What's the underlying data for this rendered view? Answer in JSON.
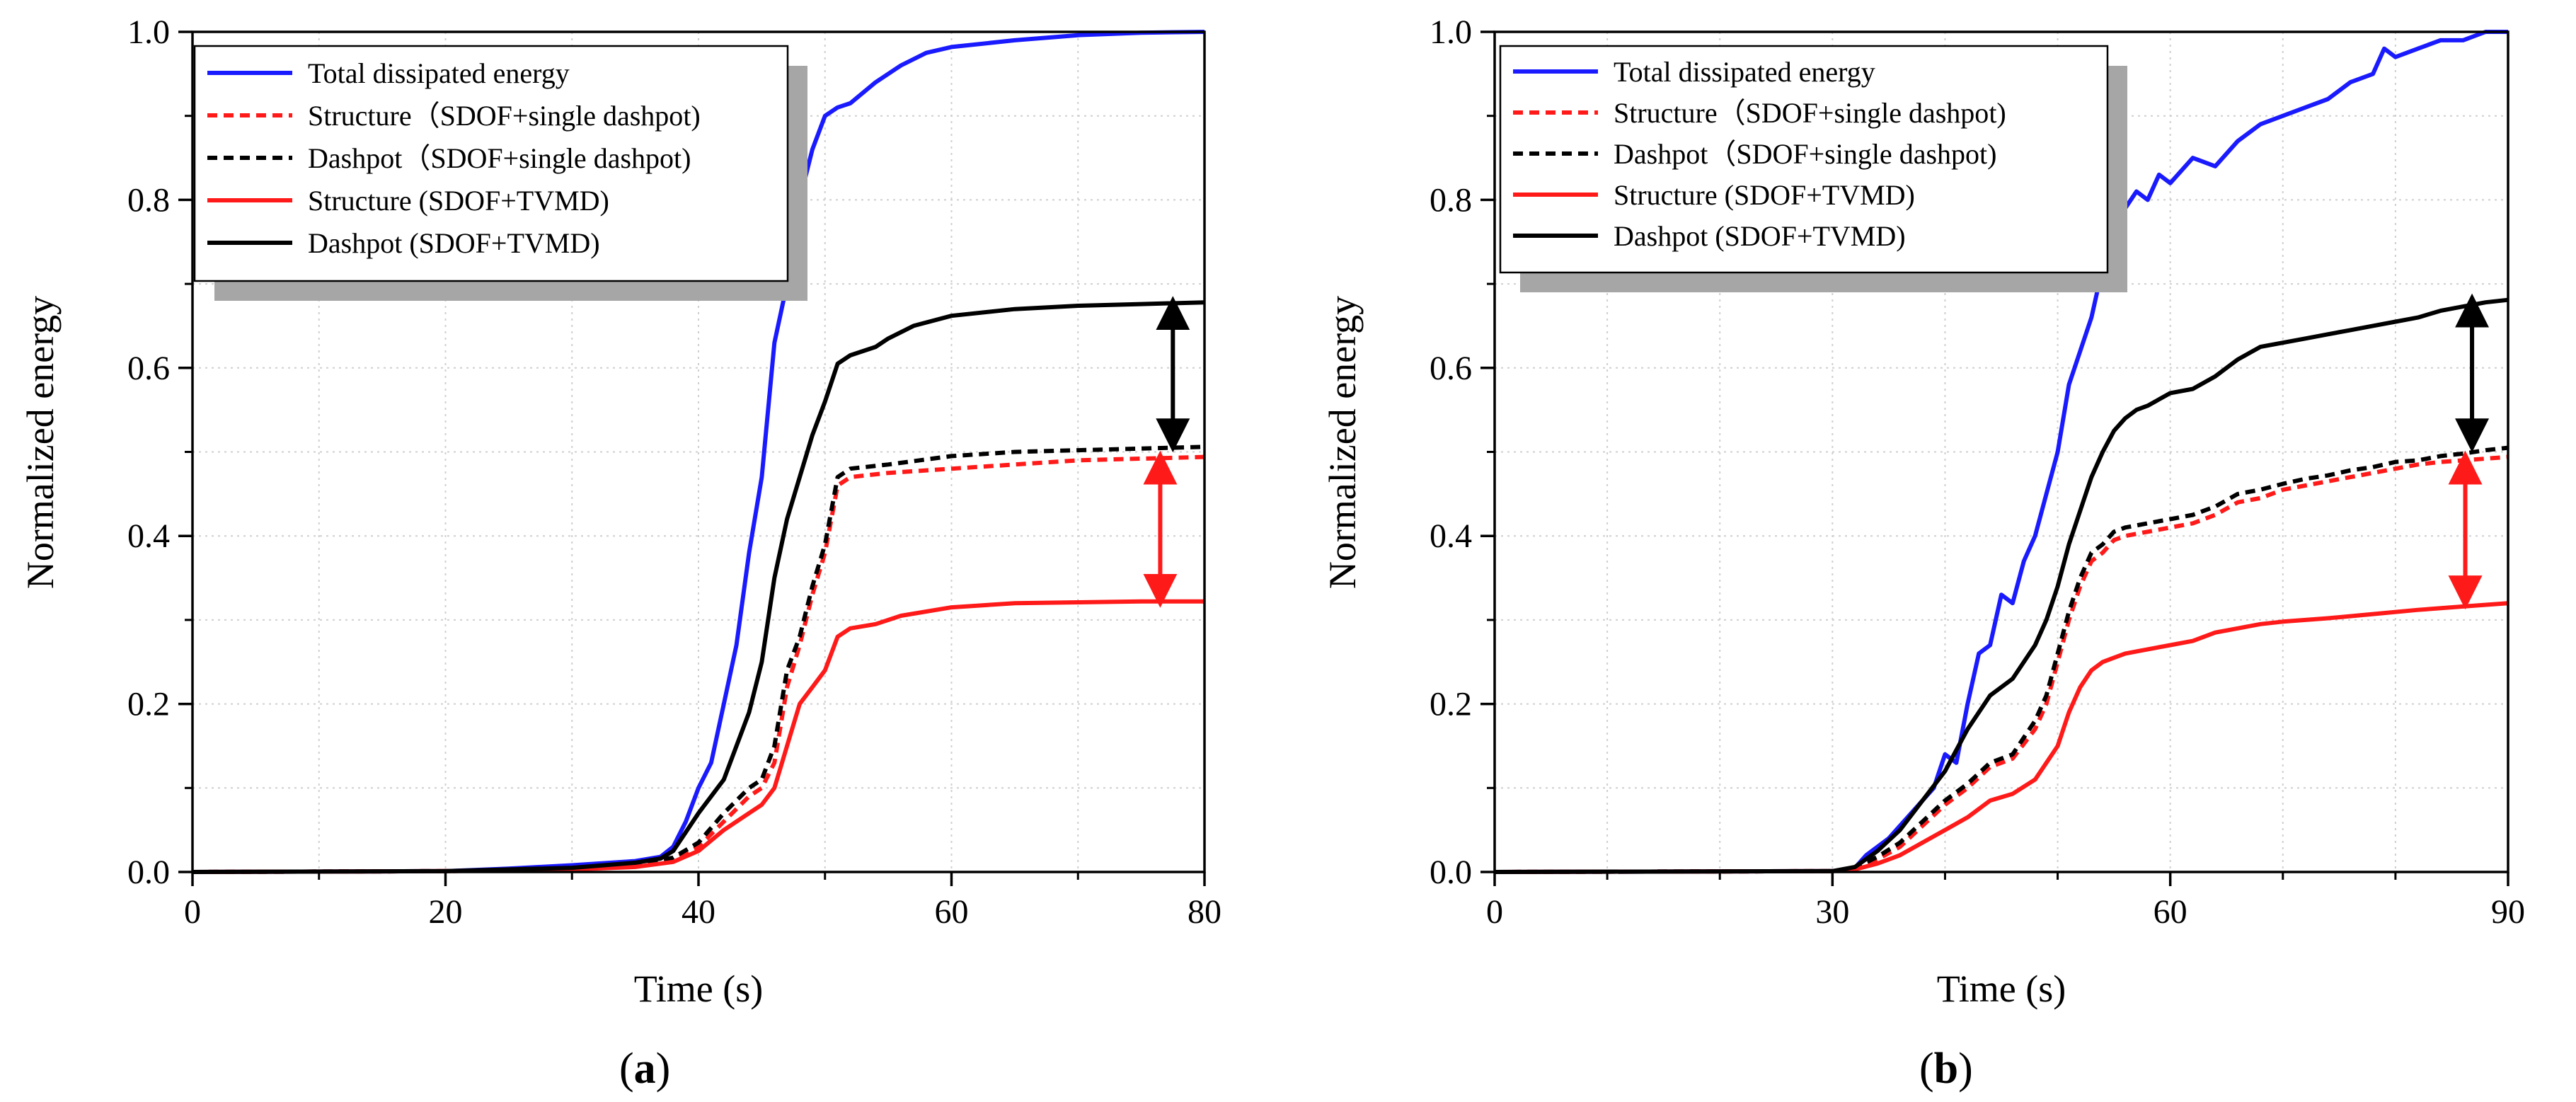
{
  "figure": {
    "title": ""
  },
  "chart_data": [
    {
      "type": "line",
      "panel_label": "(a)",
      "panel_letter": "a",
      "xlabel": "Time (s)",
      "ylabel": "Normalized energy",
      "xlim": [
        0,
        80
      ],
      "ylim": [
        0,
        1
      ],
      "xticks": [
        0,
        20,
        40,
        60,
        80
      ],
      "yticks": [
        0.0,
        0.2,
        0.4,
        0.6,
        0.8,
        1.0
      ],
      "grid": true,
      "legend_position": "top-left",
      "series": [
        {
          "name": "Total dissipated energy",
          "color": "#1a1aff",
          "dash": "solid",
          "x": [
            0,
            20,
            25,
            30,
            35,
            37,
            38,
            39,
            40,
            41,
            42,
            43,
            44,
            45,
            46,
            47,
            48,
            49,
            50,
            51,
            52,
            54,
            56,
            58,
            60,
            65,
            70,
            75,
            80
          ],
          "y": [
            0,
            0.001,
            0.004,
            0.008,
            0.013,
            0.018,
            0.03,
            0.06,
            0.1,
            0.13,
            0.2,
            0.27,
            0.38,
            0.47,
            0.63,
            0.7,
            0.8,
            0.86,
            0.9,
            0.91,
            0.915,
            0.94,
            0.96,
            0.975,
            0.982,
            0.99,
            0.996,
            0.999,
            1.0
          ]
        },
        {
          "name": "Structure（SDOF+single dashpot)",
          "color": "#ff1a1a",
          "dash": "dashed",
          "x": [
            0,
            20,
            30,
            35,
            38,
            40,
            42,
            44,
            45,
            46,
            47,
            48,
            49,
            50,
            51,
            52,
            55,
            60,
            65,
            70,
            75,
            80
          ],
          "y": [
            0,
            0.001,
            0.004,
            0.008,
            0.015,
            0.03,
            0.06,
            0.09,
            0.1,
            0.13,
            0.22,
            0.27,
            0.33,
            0.38,
            0.46,
            0.47,
            0.475,
            0.48,
            0.485,
            0.49,
            0.492,
            0.494
          ]
        },
        {
          "name": "Dashpot（SDOF+single dashpot)",
          "color": "#000000",
          "dash": "dashed",
          "x": [
            0,
            20,
            30,
            35,
            38,
            40,
            42,
            44,
            45,
            46,
            47,
            48,
            49,
            50,
            51,
            52,
            55,
            60,
            65,
            70,
            75,
            80
          ],
          "y": [
            0,
            0.001,
            0.004,
            0.009,
            0.017,
            0.035,
            0.07,
            0.1,
            0.11,
            0.15,
            0.24,
            0.28,
            0.34,
            0.39,
            0.47,
            0.48,
            0.485,
            0.495,
            0.5,
            0.502,
            0.504,
            0.506
          ]
        },
        {
          "name": "Structure (SDOF+TVMD)",
          "color": "#ff1a1a",
          "dash": "solid",
          "x": [
            0,
            20,
            30,
            35,
            38,
            40,
            42,
            44,
            45,
            46,
            47,
            48,
            49,
            50,
            51,
            52,
            54,
            56,
            60,
            65,
            70,
            75,
            80
          ],
          "y": [
            0,
            0.001,
            0.003,
            0.006,
            0.012,
            0.025,
            0.05,
            0.07,
            0.08,
            0.1,
            0.15,
            0.2,
            0.22,
            0.24,
            0.28,
            0.29,
            0.295,
            0.305,
            0.315,
            0.32,
            0.321,
            0.322,
            0.322
          ]
        },
        {
          "name": "Dashpot (SDOF+TVMD)",
          "color": "#000000",
          "dash": "solid",
          "x": [
            0,
            20,
            30,
            35,
            37,
            38,
            40,
            42,
            44,
            45,
            46,
            47,
            48,
            49,
            50,
            51,
            52,
            54,
            55,
            57,
            60,
            65,
            70,
            75,
            80
          ],
          "y": [
            0,
            0.001,
            0.005,
            0.011,
            0.016,
            0.025,
            0.07,
            0.11,
            0.19,
            0.25,
            0.35,
            0.42,
            0.47,
            0.52,
            0.56,
            0.605,
            0.615,
            0.625,
            0.635,
            0.65,
            0.662,
            0.67,
            0.674,
            0.676,
            0.678
          ]
        }
      ],
      "annotations": [
        {
          "type": "double-arrow",
          "color": "#000000",
          "x": 77.5,
          "y_from": 0.507,
          "y_to": 0.678
        },
        {
          "type": "double-arrow",
          "color": "#ff1a1a",
          "x": 76.5,
          "y_from": 0.494,
          "y_to": 0.322
        }
      ]
    },
    {
      "type": "line",
      "panel_label": "(b)",
      "panel_letter": "b",
      "xlabel": "Time (s)",
      "ylabel": "Normalized energy",
      "xlim": [
        0,
        90
      ],
      "ylim": [
        0,
        1
      ],
      "xticks": [
        0,
        30,
        60,
        90
      ],
      "yticks": [
        0.0,
        0.2,
        0.4,
        0.6,
        0.8,
        1.0
      ],
      "grid": true,
      "legend_position": "top-left",
      "series": [
        {
          "name": "Total dissipated energy",
          "color": "#1a1aff",
          "dash": "solid",
          "x": [
            0,
            30,
            32,
            33,
            35,
            37,
            39,
            40,
            41,
            42,
            43,
            44,
            45,
            46,
            47,
            48,
            49,
            50,
            51,
            52,
            53,
            54,
            55,
            56,
            57,
            58,
            59,
            60,
            62,
            64,
            66,
            68,
            70,
            72,
            74,
            76,
            78,
            79,
            80,
            82,
            84,
            86,
            88,
            90
          ],
          "y": [
            0,
            0.001,
            0.005,
            0.02,
            0.04,
            0.07,
            0.1,
            0.14,
            0.13,
            0.2,
            0.26,
            0.27,
            0.33,
            0.32,
            0.37,
            0.4,
            0.45,
            0.5,
            0.58,
            0.62,
            0.66,
            0.72,
            0.76,
            0.79,
            0.81,
            0.8,
            0.83,
            0.82,
            0.85,
            0.84,
            0.87,
            0.89,
            0.9,
            0.91,
            0.92,
            0.94,
            0.95,
            0.98,
            0.97,
            0.98,
            0.99,
            0.99,
            1.0,
            1.0
          ]
        },
        {
          "name": "Structure（SDOF+single dashpot)",
          "color": "#ff1a1a",
          "dash": "dashed",
          "x": [
            0,
            30,
            32,
            34,
            36,
            38,
            40,
            42,
            44,
            46,
            48,
            49,
            50,
            51,
            52,
            53,
            54,
            55,
            56,
            58,
            60,
            62,
            64,
            66,
            68,
            70,
            72,
            74,
            76,
            78,
            80,
            82,
            84,
            86,
            88,
            90
          ],
          "y": [
            0,
            0.001,
            0.004,
            0.015,
            0.03,
            0.055,
            0.08,
            0.1,
            0.125,
            0.135,
            0.17,
            0.2,
            0.25,
            0.3,
            0.34,
            0.37,
            0.38,
            0.395,
            0.4,
            0.405,
            0.41,
            0.415,
            0.425,
            0.44,
            0.445,
            0.455,
            0.46,
            0.465,
            0.47,
            0.475,
            0.48,
            0.485,
            0.488,
            0.49,
            0.492,
            0.494
          ]
        },
        {
          "name": "Dashpot（SDOF+single dashpot)",
          "color": "#000000",
          "dash": "dashed",
          "x": [
            0,
            30,
            32,
            34,
            36,
            38,
            40,
            42,
            44,
            46,
            48,
            49,
            50,
            51,
            52,
            53,
            54,
            55,
            56,
            58,
            60,
            62,
            64,
            66,
            68,
            70,
            72,
            74,
            76,
            78,
            80,
            82,
            84,
            86,
            88,
            90
          ],
          "y": [
            0,
            0.001,
            0.005,
            0.018,
            0.035,
            0.06,
            0.085,
            0.105,
            0.13,
            0.14,
            0.18,
            0.21,
            0.26,
            0.31,
            0.35,
            0.38,
            0.39,
            0.405,
            0.41,
            0.415,
            0.42,
            0.425,
            0.435,
            0.45,
            0.455,
            0.462,
            0.468,
            0.472,
            0.478,
            0.482,
            0.488,
            0.49,
            0.495,
            0.498,
            0.502,
            0.505
          ]
        },
        {
          "name": "Structure (SDOF+TVMD)",
          "color": "#ff1a1a",
          "dash": "solid",
          "x": [
            0,
            30,
            32,
            34,
            36,
            38,
            40,
            42,
            44,
            46,
            48,
            50,
            51,
            52,
            53,
            54,
            55,
            56,
            58,
            60,
            62,
            64,
            66,
            68,
            70,
            74,
            78,
            82,
            86,
            90
          ],
          "y": [
            0,
            0.001,
            0.003,
            0.01,
            0.02,
            0.035,
            0.05,
            0.065,
            0.085,
            0.093,
            0.11,
            0.15,
            0.19,
            0.22,
            0.24,
            0.25,
            0.255,
            0.26,
            0.265,
            0.27,
            0.275,
            0.285,
            0.29,
            0.295,
            0.298,
            0.302,
            0.307,
            0.312,
            0.316,
            0.32
          ]
        },
        {
          "name": "Dashpot (SDOF+TVMD)",
          "color": "#000000",
          "dash": "solid",
          "x": [
            0,
            30,
            32,
            34,
            36,
            38,
            40,
            42,
            44,
            46,
            48,
            49,
            50,
            51,
            52,
            53,
            54,
            55,
            56,
            57,
            58,
            60,
            62,
            64,
            66,
            68,
            70,
            72,
            74,
            76,
            78,
            80,
            82,
            84,
            86,
            88,
            90
          ],
          "y": [
            0,
            0.001,
            0.006,
            0.025,
            0.05,
            0.085,
            0.12,
            0.17,
            0.21,
            0.23,
            0.27,
            0.3,
            0.34,
            0.39,
            0.43,
            0.47,
            0.5,
            0.525,
            0.54,
            0.55,
            0.555,
            0.57,
            0.575,
            0.59,
            0.61,
            0.625,
            0.63,
            0.635,
            0.64,
            0.645,
            0.65,
            0.655,
            0.66,
            0.668,
            0.673,
            0.678,
            0.681
          ]
        }
      ],
      "annotations": [
        {
          "type": "double-arrow",
          "color": "#000000",
          "x": 86.8,
          "y_from": 0.507,
          "y_to": 0.681
        },
        {
          "type": "double-arrow",
          "color": "#ff1a1a",
          "x": 86.2,
          "y_from": 0.494,
          "y_to": 0.32
        }
      ]
    }
  ]
}
